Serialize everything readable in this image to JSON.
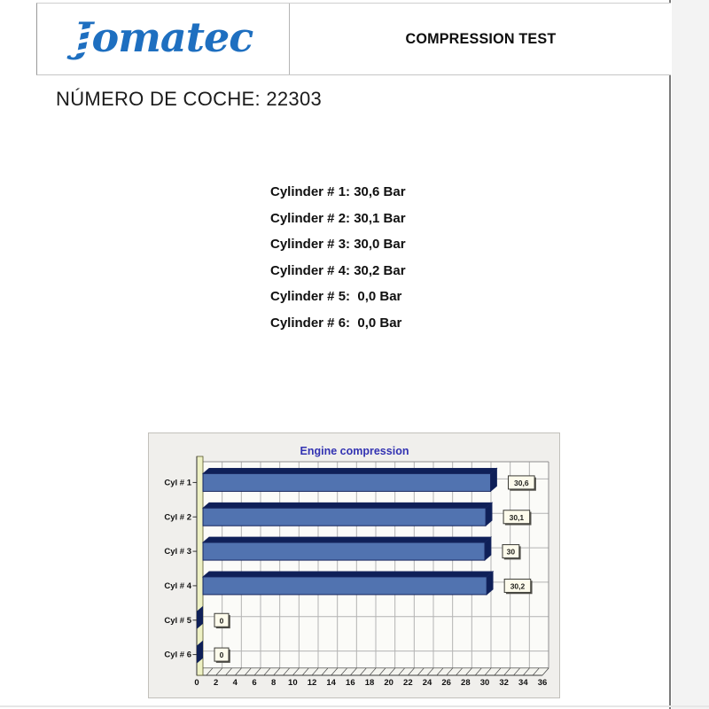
{
  "header": {
    "logo_text": "Jomatec",
    "title": "COMPRESSION TEST"
  },
  "car_number_label": "NÚMERO DE COCHE: 22303",
  "readings": [
    "Cylinder # 1: 30,6 Bar",
    "Cylinder # 2: 30,1 Bar",
    "Cylinder # 3: 30,0 Bar",
    "Cylinder # 4: 30,2 Bar",
    "Cylinder # 5:  0,0 Bar",
    "Cylinder # 6:  0,0 Bar"
  ],
  "chart_data": {
    "type": "bar",
    "orientation": "horizontal",
    "title": "Engine compression",
    "categories": [
      "Cyl # 1",
      "Cyl # 2",
      "Cyl # 3",
      "Cyl # 4",
      "Cyl # 5",
      "Cyl # 6"
    ],
    "values": [
      30.6,
      30.1,
      30,
      30.2,
      0,
      0
    ],
    "value_labels": [
      "30,6",
      "30,1",
      "30",
      "30,2",
      "0",
      "0"
    ],
    "xlabel": "",
    "ylabel": "",
    "xlim": [
      0,
      36
    ],
    "x_tick_step": 2,
    "x_minor_tick_step": 1,
    "grid": true,
    "legend": false,
    "style_3d": true,
    "colors": {
      "bar_face": "#5173b0",
      "bar_dark": "#0f2058",
      "bar_edge": "#17265e",
      "wall": "#eef1c4",
      "wall_edge": "#55552a",
      "title": "#3333b2",
      "plot_bg": "#fbfbf8",
      "grid_line": "#b3b3b3",
      "axis_line": "#2a2a2a",
      "box_bg": "#fdfbec",
      "box_edge": "#3a3a35",
      "box_shadow": "#55544e",
      "text": "#111111"
    }
  }
}
